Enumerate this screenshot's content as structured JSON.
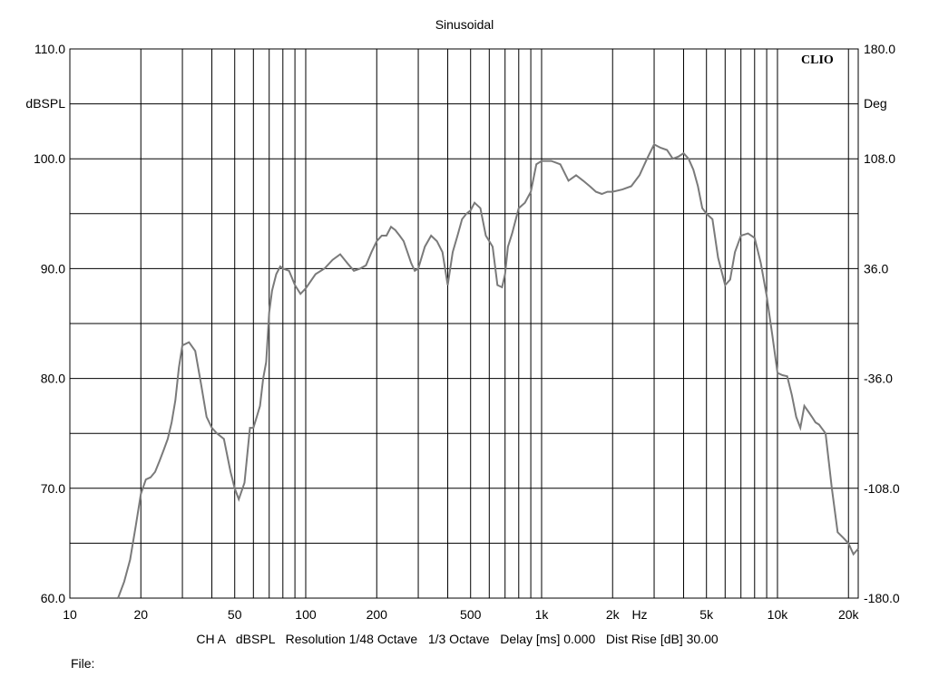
{
  "chart_data": {
    "type": "line",
    "title": "Sinusoidal",
    "brand": "CLIO",
    "xscale": "log",
    "xlim": [
      10,
      22000
    ],
    "ylim": [
      60,
      110
    ],
    "y2lim": [
      -180,
      180
    ],
    "grid": true,
    "ylabel": "dBSPL",
    "y2label": "Deg",
    "x_unit_label": "Hz",
    "x_ticks": [
      {
        "value": 10,
        "label": "10"
      },
      {
        "value": 20,
        "label": "20"
      },
      {
        "value": 50,
        "label": "50"
      },
      {
        "value": 100,
        "label": "100"
      },
      {
        "value": 200,
        "label": "200"
      },
      {
        "value": 500,
        "label": "500"
      },
      {
        "value": 1000,
        "label": "1k"
      },
      {
        "value": 2000,
        "label": "2k"
      },
      {
        "value": 5000,
        "label": "5k"
      },
      {
        "value": 10000,
        "label": "10k"
      },
      {
        "value": 20000,
        "label": "20k"
      }
    ],
    "y_ticks": [
      {
        "value": 110,
        "label": "110.0"
      },
      {
        "value": 100,
        "label": "100.0"
      },
      {
        "value": 90,
        "label": "90.0"
      },
      {
        "value": 80,
        "label": "80.0"
      },
      {
        "value": 70,
        "label": "70.0"
      },
      {
        "value": 60,
        "label": "60.0"
      }
    ],
    "y2_ticks": [
      {
        "value": 180,
        "label": "180.0"
      },
      {
        "value": 108,
        "label": "108.0"
      },
      {
        "value": 36,
        "label": "36.0"
      },
      {
        "value": -36,
        "label": "-36.0"
      },
      {
        "value": -108,
        "label": "-108.0"
      },
      {
        "value": -180,
        "label": "-180.0"
      }
    ],
    "series": [
      {
        "x": [
          16,
          17,
          18,
          19,
          20,
          21,
          22,
          23,
          24,
          25,
          26,
          27,
          28,
          29,
          30,
          32,
          34,
          36,
          38,
          40,
          42,
          45,
          48,
          50,
          52,
          55,
          58,
          60,
          62,
          64,
          66,
          68,
          70,
          72,
          75,
          78,
          80,
          85,
          90,
          95,
          100,
          110,
          120,
          130,
          140,
          150,
          160,
          170,
          180,
          190,
          200,
          210,
          220,
          230,
          240,
          250,
          260,
          270,
          280,
          290,
          300,
          320,
          340,
          360,
          380,
          400,
          420,
          440,
          460,
          480,
          500,
          520,
          550,
          580,
          600,
          620,
          650,
          680,
          700,
          720,
          750,
          800,
          850,
          900,
          950,
          1000,
          1100,
          1200,
          1300,
          1400,
          1500,
          1600,
          1700,
          1800,
          1900,
          2000,
          2200,
          2400,
          2600,
          2800,
          3000,
          3200,
          3400,
          3600,
          3800,
          4000,
          4200,
          4400,
          4600,
          4800,
          5000,
          5300,
          5600,
          6000,
          6300,
          6600,
          7000,
          7500,
          8000,
          8500,
          9000,
          9500,
          10000,
          10500,
          11000,
          11500,
          12000,
          12500,
          13000,
          13500,
          14000,
          14500,
          15000,
          16000,
          17000,
          18000,
          19000,
          20000,
          21000,
          22000
        ],
        "values": [
          60.0,
          61.5,
          63.5,
          66.5,
          69.5,
          70.8,
          71.0,
          71.5,
          72.5,
          73.5,
          74.5,
          76.0,
          78.0,
          81.0,
          83.0,
          83.3,
          82.5,
          79.5,
          76.5,
          75.5,
          75.0,
          74.5,
          71.5,
          70.0,
          69.0,
          70.5,
          75.5,
          75.5,
          76.5,
          77.5,
          80.0,
          81.5,
          86.0,
          88.0,
          89.5,
          90.2,
          90.0,
          89.8,
          88.5,
          87.7,
          88.2,
          89.5,
          90.0,
          90.8,
          91.3,
          90.5,
          89.8,
          90.0,
          90.3,
          91.5,
          92.5,
          93.0,
          93.0,
          93.8,
          93.5,
          93.0,
          92.5,
          91.5,
          90.5,
          89.8,
          90.0,
          92.0,
          93.0,
          92.5,
          91.5,
          88.5,
          91.5,
          93.0,
          94.5,
          95.0,
          95.3,
          96.0,
          95.5,
          93.0,
          92.5,
          92.0,
          88.5,
          88.3,
          89.5,
          92.0,
          93.2,
          95.5,
          96.0,
          97.0,
          99.5,
          99.8,
          99.8,
          99.5,
          98.0,
          98.5,
          98.0,
          97.5,
          97.0,
          96.8,
          97.0,
          97.0,
          97.2,
          97.5,
          98.5,
          100.0,
          101.3,
          101.0,
          100.8,
          100.0,
          100.2,
          100.5,
          100.0,
          99.0,
          97.5,
          95.5,
          95.0,
          94.5,
          91.0,
          88.5,
          89.0,
          91.5,
          93.0,
          93.2,
          92.8,
          90.5,
          87.5,
          84.0,
          80.5,
          80.3,
          80.2,
          78.5,
          76.5,
          75.5,
          77.5,
          77.0,
          76.5,
          76.0,
          75.8,
          75.0,
          70.0,
          66.0,
          65.5,
          65.0,
          64.0,
          64.5
        ]
      }
    ],
    "info_line": "CH A   dBSPL   Resolution 1/48 Octave   1/3 Octave   Delay [ms] 0.000   Dist Rise [dB] 30.00",
    "file_label": "File:"
  },
  "colors": {
    "background": "#ffffff",
    "grid": "#000000",
    "curve": "#7a7a7a"
  }
}
